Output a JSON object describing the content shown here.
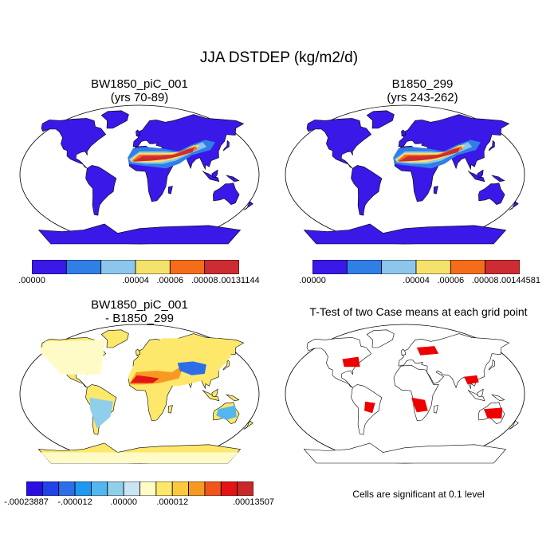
{
  "title": "JJA DSTDEP (kg/m2/d)",
  "panels": [
    {
      "id": "p1",
      "title_line1": "BW1850_piC_001",
      "title_line2": "(yrs 70-89)",
      "colorbar": {
        "colors": [
          "#3a18e8",
          "#2f7fe6",
          "#8cc6ec",
          "#f5e26a",
          "#f56d1a",
          "#cc2c32"
        ],
        "labels": [
          ".00000",
          ".00004",
          ".00006",
          ".00008",
          ".00131144"
        ]
      }
    },
    {
      "id": "p2",
      "title_line1": "B1850_299",
      "title_line2": "(yrs 243-262)",
      "colorbar": {
        "colors": [
          "#3a18e8",
          "#2f7fe6",
          "#8cc6ec",
          "#f5e26a",
          "#f56d1a",
          "#cc2c32"
        ],
        "labels": [
          ".00000",
          ".00004",
          ".00006",
          ".00008",
          ".00144581"
        ]
      }
    },
    {
      "id": "p3",
      "title_line1": "BW1850_piC_001",
      "title_line2": "- B1850_299",
      "colorbar": {
        "colors": [
          "#2a0fe0",
          "#2141ea",
          "#2d6ee8",
          "#1f98f0",
          "#52b7ef",
          "#8fcfec",
          "#c9e4f3",
          "#fffbc7",
          "#fde86c",
          "#fbc93d",
          "#f69a24",
          "#f0561c",
          "#e41414",
          "#c82828"
        ],
        "labels": [
          "-.00023887",
          "-.000012",
          ".00000",
          ".000012",
          ".00013507"
        ]
      }
    },
    {
      "id": "p4",
      "title_line1": "T-Test of two Case means at each grid point",
      "note": "Cells are significant at 0.1 level"
    }
  ],
  "colors": {
    "ocean": "#ffffff",
    "land_base": "#3a18e8",
    "significant": "#ee0000",
    "coast": "#000000"
  }
}
